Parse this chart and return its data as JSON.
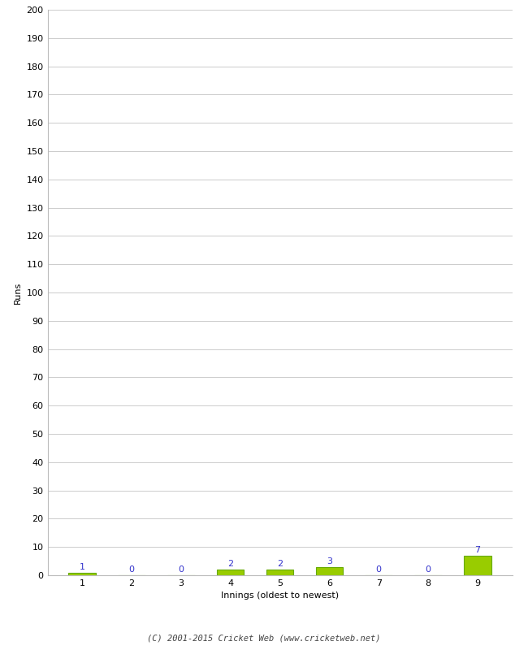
{
  "innings": [
    1,
    2,
    3,
    4,
    5,
    6,
    7,
    8,
    9
  ],
  "runs": [
    1,
    0,
    0,
    2,
    2,
    3,
    0,
    0,
    7
  ],
  "bar_color": "#99cc00",
  "bar_edge_color": "#66aa00",
  "label_color": "#3333cc",
  "xlabel": "Innings (oldest to newest)",
  "ylabel": "Runs",
  "ylim": [
    0,
    200
  ],
  "yticks": [
    0,
    10,
    20,
    30,
    40,
    50,
    60,
    70,
    80,
    90,
    100,
    110,
    120,
    130,
    140,
    150,
    160,
    170,
    180,
    190,
    200
  ],
  "footer": "(C) 2001-2015 Cricket Web (www.cricketweb.net)",
  "background_color": "#ffffff",
  "grid_color": "#cccccc",
  "tick_label_fontsize": 8,
  "axis_label_fontsize": 8,
  "footer_fontsize": 7.5
}
